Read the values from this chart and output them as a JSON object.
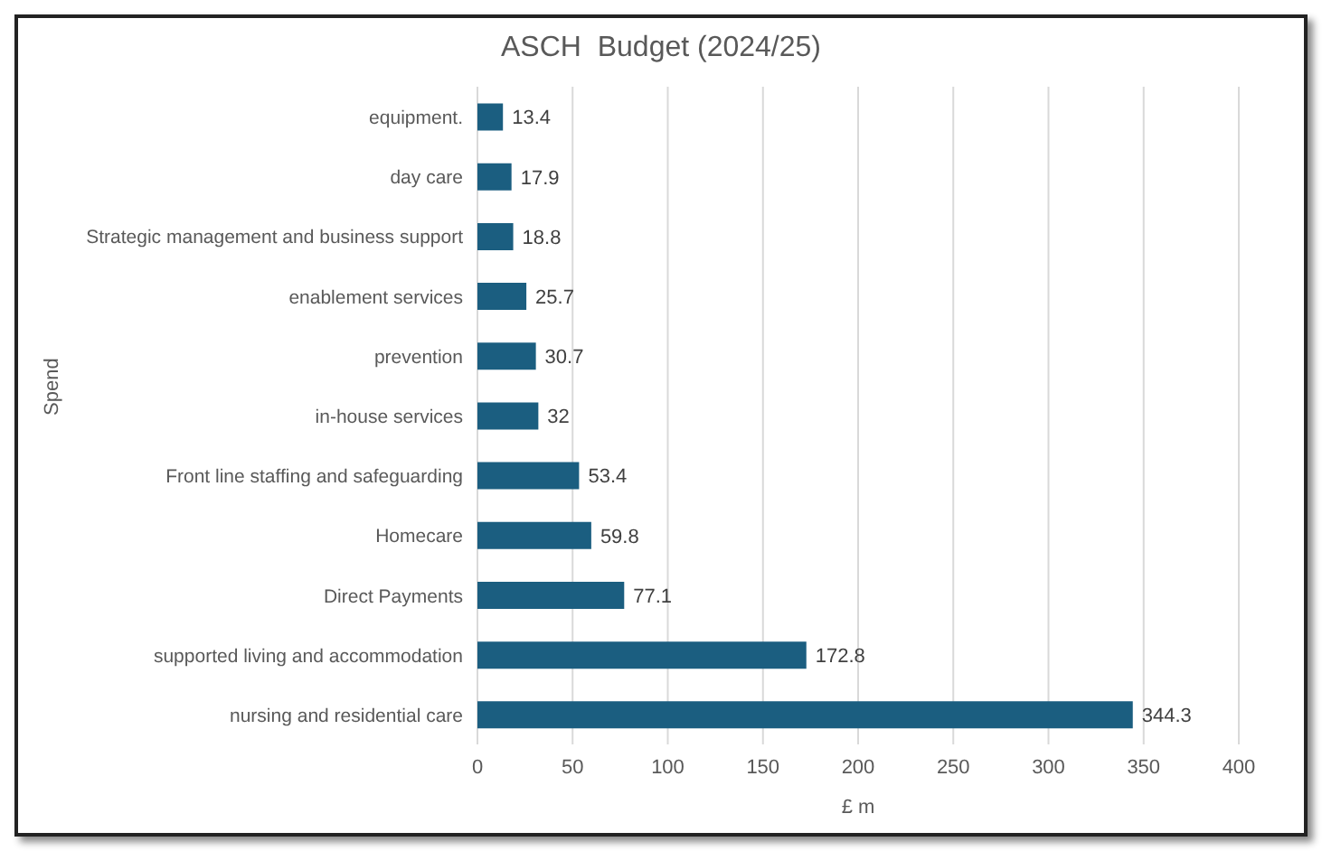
{
  "chart_data": {
    "type": "bar",
    "orientation": "horizontal",
    "title": "ASCH  Budget (2024/25)",
    "xlabel": "£ m",
    "ylabel": "Spend",
    "categories": [
      "equipment.",
      "day care",
      "Strategic management and business support",
      "enablement services",
      "prevention",
      "in-house services",
      "Front line staffing and safeguarding",
      "Homecare",
      "Direct Payments",
      "supported living and accommodation",
      "nursing and residential care"
    ],
    "values": [
      13.4,
      17.9,
      18.8,
      25.7,
      30.7,
      32,
      53.4,
      59.8,
      77.1,
      172.8,
      344.3
    ],
    "color": "#1b5e80",
    "xlim": [
      0,
      400
    ],
    "xticks": [
      0,
      50,
      100,
      150,
      200,
      250,
      300,
      350,
      400
    ],
    "grid": "x",
    "data_labels": true,
    "legend": false
  }
}
